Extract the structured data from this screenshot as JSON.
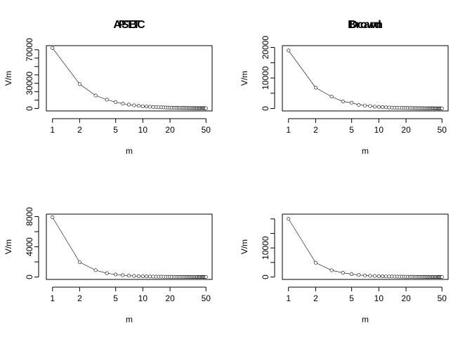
{
  "chart_data": [
    {
      "type": "scatter",
      "title": "ASBC",
      "xlabel": "m",
      "ylabel": "V/m",
      "x_scale": "log",
      "xlim": [
        1,
        50
      ],
      "x_ticks": [
        1,
        2,
        5,
        10,
        20,
        50
      ],
      "ylim": [
        0,
        72000
      ],
      "y_ticks": [
        0,
        30000,
        70000
      ],
      "y_minor_ticks": [
        10000,
        20000,
        40000,
        50000,
        60000
      ],
      "series": [
        {
          "x": [
            1,
            2,
            3,
            4,
            5,
            6,
            7,
            8,
            9,
            10,
            11,
            12,
            13,
            14,
            15,
            16,
            17,
            18,
            19,
            20,
            21,
            22,
            23,
            24,
            25,
            26,
            27,
            28,
            29,
            30,
            31,
            32,
            33,
            34,
            35,
            36,
            37,
            38,
            39,
            40,
            41,
            42,
            43,
            44,
            45,
            46,
            47,
            48,
            49,
            50
          ],
          "y": [
            72000,
            29000,
            15500,
            10500,
            7600,
            5800,
            4600,
            3800,
            3200,
            2700,
            2400,
            2100,
            1900,
            1700,
            1550,
            1420,
            1300,
            1200,
            1110,
            1030,
            960,
            900,
            850,
            800,
            760,
            720,
            680,
            650,
            620,
            590,
            560,
            540,
            520,
            500,
            480,
            465,
            450,
            435,
            420,
            405,
            392,
            380,
            368,
            357,
            347,
            337,
            328,
            319,
            311,
            303
          ]
        }
      ]
    },
    {
      "type": "scatter",
      "title": "Brown",
      "xlabel": "m",
      "ylabel": "V/m",
      "x_scale": "log",
      "xlim": [
        1,
        50
      ],
      "x_ticks": [
        1,
        2,
        5,
        10,
        20,
        50
      ],
      "ylim": [
        0,
        19800
      ],
      "y_ticks": [
        0,
        10000,
        20000
      ],
      "y_minor_ticks": [
        5000,
        15000
      ],
      "series": [
        {
          "x": [
            1,
            2,
            3,
            4,
            5,
            6,
            7,
            8,
            9,
            10,
            11,
            12,
            13,
            14,
            15,
            16,
            17,
            18,
            19,
            20,
            21,
            22,
            23,
            24,
            25,
            26,
            27,
            28,
            29,
            30,
            31,
            32,
            33,
            34,
            35,
            36,
            37,
            38,
            39,
            40,
            41,
            42,
            43,
            44,
            45,
            46,
            47,
            48,
            49,
            50
          ],
          "y": [
            19000,
            6800,
            3900,
            2300,
            1900,
            1200,
            1000,
            800,
            600,
            520,
            450,
            390,
            340,
            300,
            270,
            245,
            225,
            205,
            190,
            175,
            162,
            150,
            140,
            131,
            123,
            116,
            109,
            103,
            98,
            93,
            88,
            84,
            80,
            76,
            73,
            70,
            67,
            64,
            61,
            59,
            57,
            55,
            53,
            51,
            49,
            47,
            46,
            44,
            43,
            42
          ]
        }
      ]
    },
    {
      "type": "scatter",
      "title": "PTT",
      "xlabel": "m",
      "ylabel": "V/m",
      "x_scale": "log",
      "xlim": [
        1,
        50
      ],
      "x_ticks": [
        1,
        2,
        5,
        10,
        20,
        50
      ],
      "ylim": [
        0,
        8000
      ],
      "y_ticks": [
        0,
        4000,
        8000
      ],
      "y_minor_ticks": [
        2000,
        6000
      ],
      "series": [
        {
          "x": [
            1,
            2,
            3,
            4,
            5,
            6,
            7,
            8,
            9,
            10,
            11,
            12,
            13,
            14,
            15,
            16,
            17,
            18,
            19,
            20,
            21,
            22,
            23,
            24,
            25,
            26,
            27,
            28,
            29,
            30,
            31,
            32,
            33,
            34,
            35,
            36,
            37,
            38,
            39,
            40,
            41,
            42,
            43,
            44,
            45,
            46,
            47,
            48,
            49,
            50
          ],
          "y": [
            7900,
            1950,
            900,
            500,
            330,
            240,
            180,
            140,
            110,
            90,
            76,
            65,
            56,
            49,
            43,
            38,
            34,
            31,
            28,
            26,
            24,
            22,
            20,
            19,
            18,
            17,
            16,
            15,
            14,
            13,
            12.5,
            12,
            11.5,
            11,
            10.5,
            10,
            9.6,
            9.2,
            8.8,
            8.5,
            8.2,
            7.9,
            7.6,
            7.3,
            7.1,
            6.9,
            6.7,
            6.5,
            6.3,
            6.1
          ]
        }
      ]
    },
    {
      "type": "scatter",
      "title": "Dcard",
      "xlabel": "m",
      "ylabel": "V/m",
      "x_scale": "log",
      "xlim": [
        1,
        50
      ],
      "x_ticks": [
        1,
        2,
        5,
        10,
        20,
        50
      ],
      "ylim": [
        0,
        20800
      ],
      "y_ticks": [
        0,
        10000
      ],
      "y_minor_ticks": [
        5000,
        15000,
        20000
      ],
      "series": [
        {
          "x": [
            1,
            2,
            3,
            4,
            5,
            6,
            7,
            8,
            9,
            10,
            11,
            12,
            13,
            14,
            15,
            16,
            17,
            18,
            19,
            20,
            21,
            22,
            23,
            24,
            25,
            26,
            27,
            28,
            29,
            30,
            31,
            32,
            33,
            34,
            35,
            36,
            37,
            38,
            39,
            40,
            41,
            42,
            43,
            44,
            45,
            46,
            47,
            48,
            49,
            50
          ],
          "y": [
            20000,
            4900,
            2300,
            1450,
            1000,
            700,
            530,
            420,
            340,
            280,
            240,
            205,
            178,
            156,
            138,
            123,
            111,
            100,
            91,
            83,
            76,
            70,
            65,
            60,
            56,
            52,
            49,
            46,
            43,
            41,
            39,
            37,
            35,
            33,
            32,
            30,
            29,
            28,
            27,
            26,
            25,
            24,
            23,
            22,
            21.5,
            21,
            20.5,
            20,
            19.5,
            19
          ]
        }
      ]
    }
  ]
}
